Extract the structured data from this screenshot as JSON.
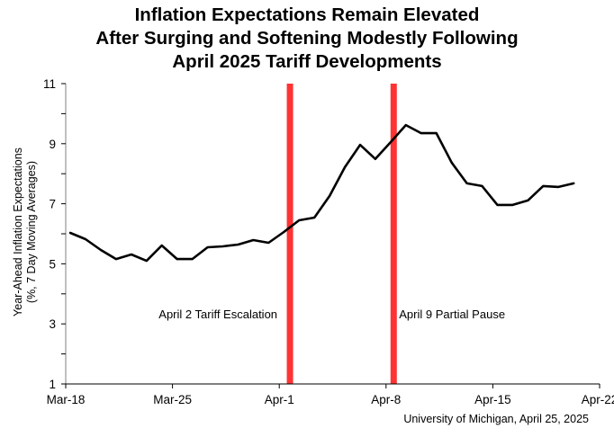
{
  "chart_data": {
    "type": "line",
    "title": [
      "Inflation Expectations Remain Elevated",
      "After Surging and Softening Modestly Following",
      "April 2025 Tariff Developments"
    ],
    "xlabel": "",
    "ylabel": [
      "Year-Ahead Inflation Expectations",
      "(%, 7 Day Moving Averages)"
    ],
    "ylim": [
      1,
      11
    ],
    "yticks": [
      1,
      3,
      5,
      7,
      9,
      11
    ],
    "yminor_step": 1,
    "x_start_label": "Mar-18",
    "x_range_days": [
      0,
      35
    ],
    "xticks": [
      {
        "day": 0,
        "label": "Mar-18"
      },
      {
        "day": 7,
        "label": "Mar-25"
      },
      {
        "day": 14,
        "label": "Apr-1"
      },
      {
        "day": 21,
        "label": "Apr-8"
      },
      {
        "day": 28,
        "label": "Apr-15"
      },
      {
        "day": 35,
        "label": "Apr-22"
      }
    ],
    "series": [
      {
        "name": "Year-Ahead Inflation Expectations (7 day moving average)",
        "color": "#000000",
        "day_offset": 0.3,
        "values": [
          6.03,
          5.82,
          5.46,
          5.16,
          5.31,
          5.1,
          5.61,
          5.16,
          5.16,
          5.55,
          5.58,
          5.64,
          5.79,
          5.7,
          6.06,
          6.45,
          6.54,
          7.26,
          8.22,
          8.96,
          8.49,
          9.05,
          9.62,
          9.35,
          9.35,
          8.37,
          7.68,
          7.59,
          6.96,
          6.96,
          7.11,
          7.59,
          7.56,
          7.68
        ]
      }
    ],
    "events": [
      {
        "day": 14.7,
        "label": "April 2 Tariff Escalation",
        "color": "#ff3333",
        "label_side": "left",
        "label_value": 3.3
      },
      {
        "day": 21.5,
        "label": "April 9 Partial Pause",
        "color": "#ff3333",
        "label_side": "right",
        "label_value": 3.3
      }
    ],
    "grid": false,
    "source": "University of Michigan, April 25, 2025"
  }
}
